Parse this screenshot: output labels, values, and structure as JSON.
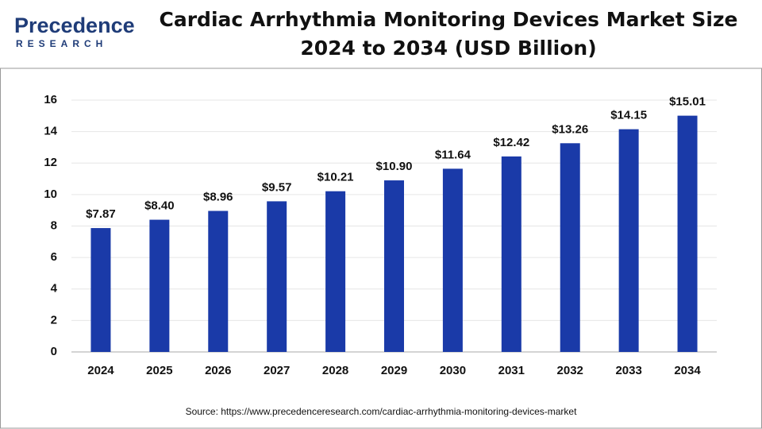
{
  "logo": {
    "name": "Precedence",
    "tagline": "RESEARCH"
  },
  "chart_data": {
    "type": "bar",
    "title": "Cardiac Arrhythmia Monitoring Devices Market Size",
    "subtitle": "2024 to 2034 (USD Billion)",
    "categories": [
      "2024",
      "2025",
      "2026",
      "2027",
      "2028",
      "2029",
      "2030",
      "2031",
      "2032",
      "2033",
      "2034"
    ],
    "values": [
      7.87,
      8.4,
      8.96,
      9.57,
      10.21,
      10.9,
      11.64,
      12.42,
      13.26,
      14.15,
      15.01
    ],
    "value_labels": [
      "$7.87",
      "$8.40",
      "$8.96",
      "$9.57",
      "$10.21",
      "$10.90",
      "$11.64",
      "$12.42",
      "$13.26",
      "$14.15",
      "$15.01"
    ],
    "color": "#1a3aa8",
    "ylim": [
      0,
      16
    ],
    "yticks": [
      0,
      2,
      4,
      6,
      8,
      10,
      12,
      14,
      16
    ],
    "grid": true,
    "source": "Source: https://www.precedenceresearch.com/cardiac-arrhythmia-monitoring-devices-market"
  }
}
